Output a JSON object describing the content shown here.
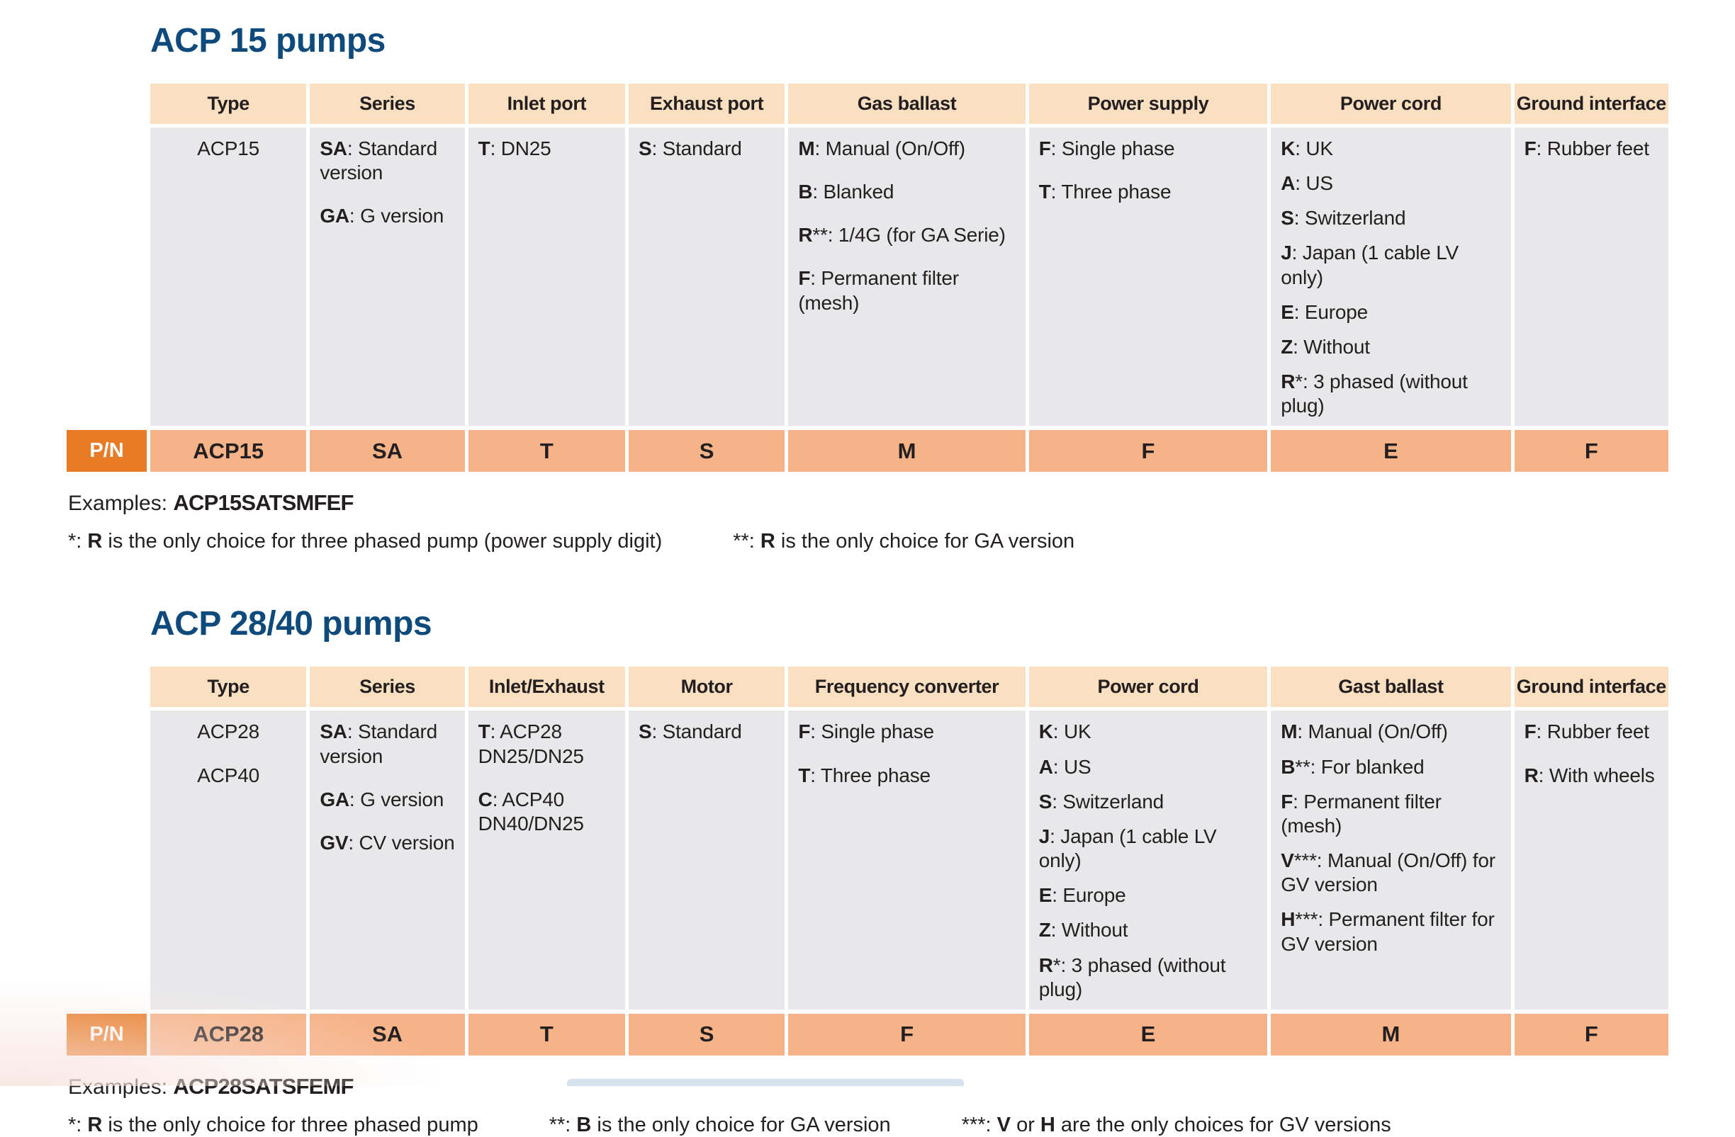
{
  "colors": {
    "title_blue": "#0f4a7d",
    "header_bg": "#fbdfc1",
    "cell_bg": "#e8e8ea",
    "pn_badge_bg": "#e87b25",
    "pn_cell_bg": "#f6b388",
    "text": "#231f20",
    "footer_bar": "#d5e2ef"
  },
  "tables": [
    {
      "title": "ACP 15 pumps",
      "pn_label": "P/N",
      "columns": [
        "Type",
        "Series",
        "Inlet port",
        "Exhaust port",
        "Gas ballast",
        "Power supply",
        "Power cord",
        "Ground interface"
      ],
      "cells": [
        {
          "align": "center",
          "items": [
            {
              "k": "",
              "t": "ACP15"
            }
          ]
        },
        {
          "items": [
            {
              "k": "SA",
              "t": ": Standard version"
            },
            {
              "k": "GA",
              "t": ": G version"
            }
          ]
        },
        {
          "items": [
            {
              "k": "T",
              "t": ": DN25"
            }
          ]
        },
        {
          "items": [
            {
              "k": "S",
              "t": ": Standard"
            }
          ]
        },
        {
          "items": [
            {
              "k": "M",
              "t": ": Manual (On/Off)"
            },
            {
              "k": "B",
              "t": ": Blanked"
            },
            {
              "k": "R",
              "t": "**: 1/4G (for GA Serie)"
            },
            {
              "k": "F",
              "t": ": Permanent filter (mesh)"
            }
          ]
        },
        {
          "items": [
            {
              "k": "F",
              "t": ": Single phase"
            },
            {
              "k": "T",
              "t": ": Three phase"
            }
          ]
        },
        {
          "items": [
            {
              "k": "K",
              "t": ": UK"
            },
            {
              "k": "A",
              "t": ": US"
            },
            {
              "k": "S",
              "t": ": Switzerland"
            },
            {
              "k": "J",
              "t": ": Japan (1 cable LV only)"
            },
            {
              "k": "E",
              "t": ": Europe"
            },
            {
              "k": "Z",
              "t": ": Without"
            },
            {
              "k": "R",
              "t": "*: 3 phased (without plug)"
            }
          ]
        },
        {
          "items": [
            {
              "k": "F",
              "t": ": Rubber feet"
            }
          ]
        }
      ],
      "pn_values": [
        "ACP15",
        "SA",
        "T",
        "S",
        "M",
        "F",
        "E",
        "F"
      ],
      "examples_label": "Examples:",
      "example_code": "ACP15SATSMFEF",
      "footnotes": [
        [
          {
            "t": "*: "
          },
          {
            "t": "R",
            "b": true
          },
          {
            "t": " is the only choice for three phased pump (power supply digit)"
          }
        ],
        [
          {
            "t": "**: "
          },
          {
            "t": "R",
            "b": true
          },
          {
            "t": " is the only choice for GA version"
          }
        ]
      ]
    },
    {
      "title": "ACP 28/40 pumps",
      "pn_label": "P/N",
      "columns": [
        "Type",
        "Series",
        "Inlet/Exhaust",
        "Motor",
        "Frequency converter",
        "Power cord",
        "Gast ballast",
        "Ground interface"
      ],
      "cells": [
        {
          "align": "center",
          "items": [
            {
              "k": "",
              "t": "ACP28"
            },
            {
              "k": "",
              "t": "ACP40"
            }
          ]
        },
        {
          "items": [
            {
              "k": "SA",
              "t": ": Standard version"
            },
            {
              "k": "GA",
              "t": ": G version"
            },
            {
              "k": "GV",
              "t": ": CV version"
            }
          ]
        },
        {
          "items": [
            {
              "k": "T",
              "t": ": ACP28 DN25/DN25"
            },
            {
              "k": "C",
              "t": ": ACP40 DN40/DN25"
            }
          ]
        },
        {
          "items": [
            {
              "k": "S",
              "t": ": Standard"
            }
          ]
        },
        {
          "items": [
            {
              "k": "F",
              "t": ": Single phase"
            },
            {
              "k": "T",
              "t": ": Three phase"
            }
          ]
        },
        {
          "items": [
            {
              "k": "K",
              "t": ": UK"
            },
            {
              "k": "A",
              "t": ": US"
            },
            {
              "k": "S",
              "t": ": Switzerland"
            },
            {
              "k": "J",
              "t": ": Japan (1 cable LV only)"
            },
            {
              "k": "E",
              "t": ": Europe"
            },
            {
              "k": "Z",
              "t": ": Without"
            },
            {
              "k": "R",
              "t": "*: 3 phased (without plug)"
            }
          ]
        },
        {
          "items": [
            {
              "k": "M",
              "t": ": Manual (On/Off)"
            },
            {
              "k": "B",
              "t": "**: For blanked"
            },
            {
              "k": "F",
              "t": ": Permanent filter (mesh)"
            },
            {
              "k": "V",
              "t": "***: Manual (On/Off) for GV version"
            },
            {
              "k": "H",
              "t": "***: Permanent filter for GV version"
            }
          ]
        },
        {
          "items": [
            {
              "k": "F",
              "t": ": Rubber feet"
            },
            {
              "k": "R",
              "t": ": With wheels"
            }
          ]
        }
      ],
      "pn_values": [
        "ACP28",
        "SA",
        "T",
        "S",
        "F",
        "E",
        "M",
        "F"
      ],
      "examples_label": "Examples:",
      "example_code": "ACP28SATSFEMF",
      "footnotes": [
        [
          {
            "t": "*: "
          },
          {
            "t": "R",
            "b": true
          },
          {
            "t": " is the only choice for three phased pump"
          }
        ],
        [
          {
            "t": "**: "
          },
          {
            "t": "B",
            "b": true
          },
          {
            "t": " is the only choice for GA version"
          }
        ],
        [
          {
            "t": "***: "
          },
          {
            "t": "V",
            "b": true
          },
          {
            "t": " or "
          },
          {
            "t": "H",
            "b": true
          },
          {
            "t": " are the only choices for GV versions"
          }
        ]
      ]
    }
  ]
}
